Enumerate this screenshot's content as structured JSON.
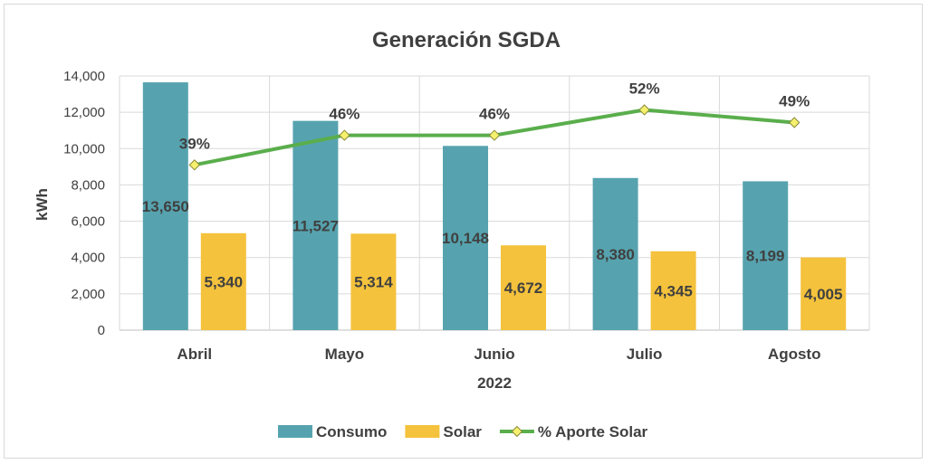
{
  "chart_data": {
    "type": "bar",
    "title": "Generación SGDA",
    "xlabel": "2022",
    "ylabel": "kWh",
    "ylim": [
      0,
      14000
    ],
    "ytick_step": 2000,
    "categories": [
      "Abril",
      "Mayo",
      "Junio",
      "Julio",
      "Agosto"
    ],
    "series": [
      {
        "name": "Consumo",
        "kind": "bar",
        "color": "#56A3AF",
        "values": [
          13650,
          11527,
          10148,
          8380,
          8199
        ],
        "labels": [
          "13,650",
          "11,527",
          "10,148",
          "8,380",
          "8,199"
        ]
      },
      {
        "name": "Solar",
        "kind": "bar",
        "color": "#F4C23C",
        "values": [
          5340,
          5314,
          4672,
          4345,
          4005
        ],
        "labels": [
          "5,340",
          "5,314",
          "4,672",
          "4,345",
          "4,005"
        ]
      },
      {
        "name": "% Aporte Solar",
        "kind": "line",
        "color": "#5AAE4C",
        "marker_color": "#F5F06E",
        "values": [
          39,
          46,
          46,
          52,
          49
        ],
        "labels": [
          "39%",
          "46%",
          "46%",
          "52%",
          "49%"
        ],
        "secondary_ylim": [
          0,
          60
        ]
      }
    ],
    "yticks": [
      "0",
      "2,000",
      "4,000",
      "6,000",
      "8,000",
      "10,000",
      "12,000",
      "14,000"
    ],
    "grid": true,
    "legend": "bottom"
  }
}
